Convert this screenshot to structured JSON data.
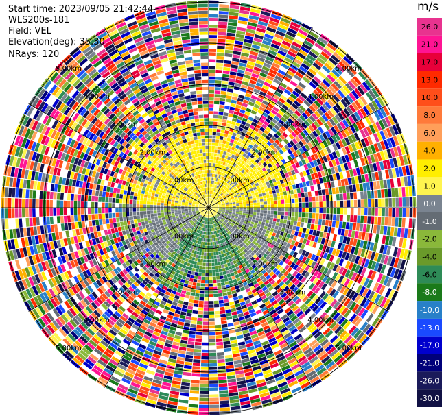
{
  "header": {
    "start_time": "Start time: 2023/09/05 21:42:44",
    "instrument": "WLS200s-181",
    "field": "Field: VEL",
    "elevation": "Elevation(deg): 35.30",
    "nrays": "NRays: 120"
  },
  "range_rings": [
    "1.00km",
    "2.00km",
    "3.00km",
    "4.00km",
    "5.00km"
  ],
  "colorbar": {
    "unit": "m/s",
    "ticks": [
      "26.0",
      "21.0",
      "17.0",
      "13.0",
      "10.0",
      "8.0",
      "6.0",
      "4.0",
      "2.0",
      "1.0",
      "0.0",
      "-1.0",
      "-2.0",
      "-4.0",
      "-6.0",
      "-8.0",
      "-10.0",
      "-13.0",
      "-17.0",
      "-21.0",
      "-26.0",
      "-30.0"
    ],
    "colors": [
      "#e8338f",
      "#ff1493",
      "#e8003a",
      "#ff2a00",
      "#ff4e1a",
      "#ff7a3a",
      "#ff9f5a",
      "#ffb000",
      "#ffee00",
      "#fff44f",
      "#7a8490",
      "#646c74",
      "#8ab83a",
      "#6a9a2a",
      "#2e8b57",
      "#1a7a1a",
      "#2880c8",
      "#1a4aff",
      "#0000cd",
      "#00007a",
      "#1a1a5a",
      "#111144"
    ]
  }
}
